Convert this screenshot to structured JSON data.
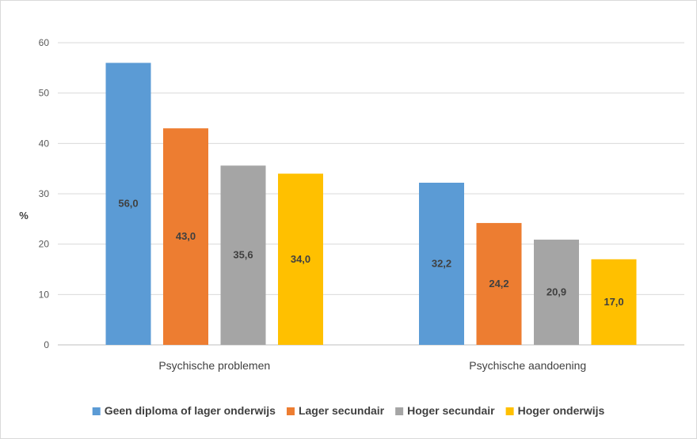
{
  "chart_data": {
    "type": "bar",
    "ylabel": "%",
    "ylim": [
      0,
      60
    ],
    "yticks": [
      "0",
      "10",
      "20",
      "30",
      "40",
      "50",
      "60"
    ],
    "grid": true,
    "legend_position": "bottom",
    "categories": [
      "Psychische problemen",
      "Psychische aandoening"
    ],
    "series": [
      {
        "name": "Geen diploma of lager onderwijs",
        "color": "#5b9bd5",
        "values": [
          56.0,
          32.2
        ],
        "labels": [
          "56,0",
          "32,2"
        ]
      },
      {
        "name": "Lager secundair",
        "color": "#ed7d31",
        "values": [
          43.0,
          24.2
        ],
        "labels": [
          "43,0",
          "24,2"
        ]
      },
      {
        "name": "Hoger secundair",
        "color": "#a5a5a5",
        "values": [
          35.6,
          20.9
        ],
        "labels": [
          "35,6",
          "20,9"
        ]
      },
      {
        "name": "Hoger onderwijs",
        "color": "#ffc000",
        "values": [
          34.0,
          17.0
        ],
        "labels": [
          "34,0",
          "17,0"
        ]
      }
    ]
  }
}
